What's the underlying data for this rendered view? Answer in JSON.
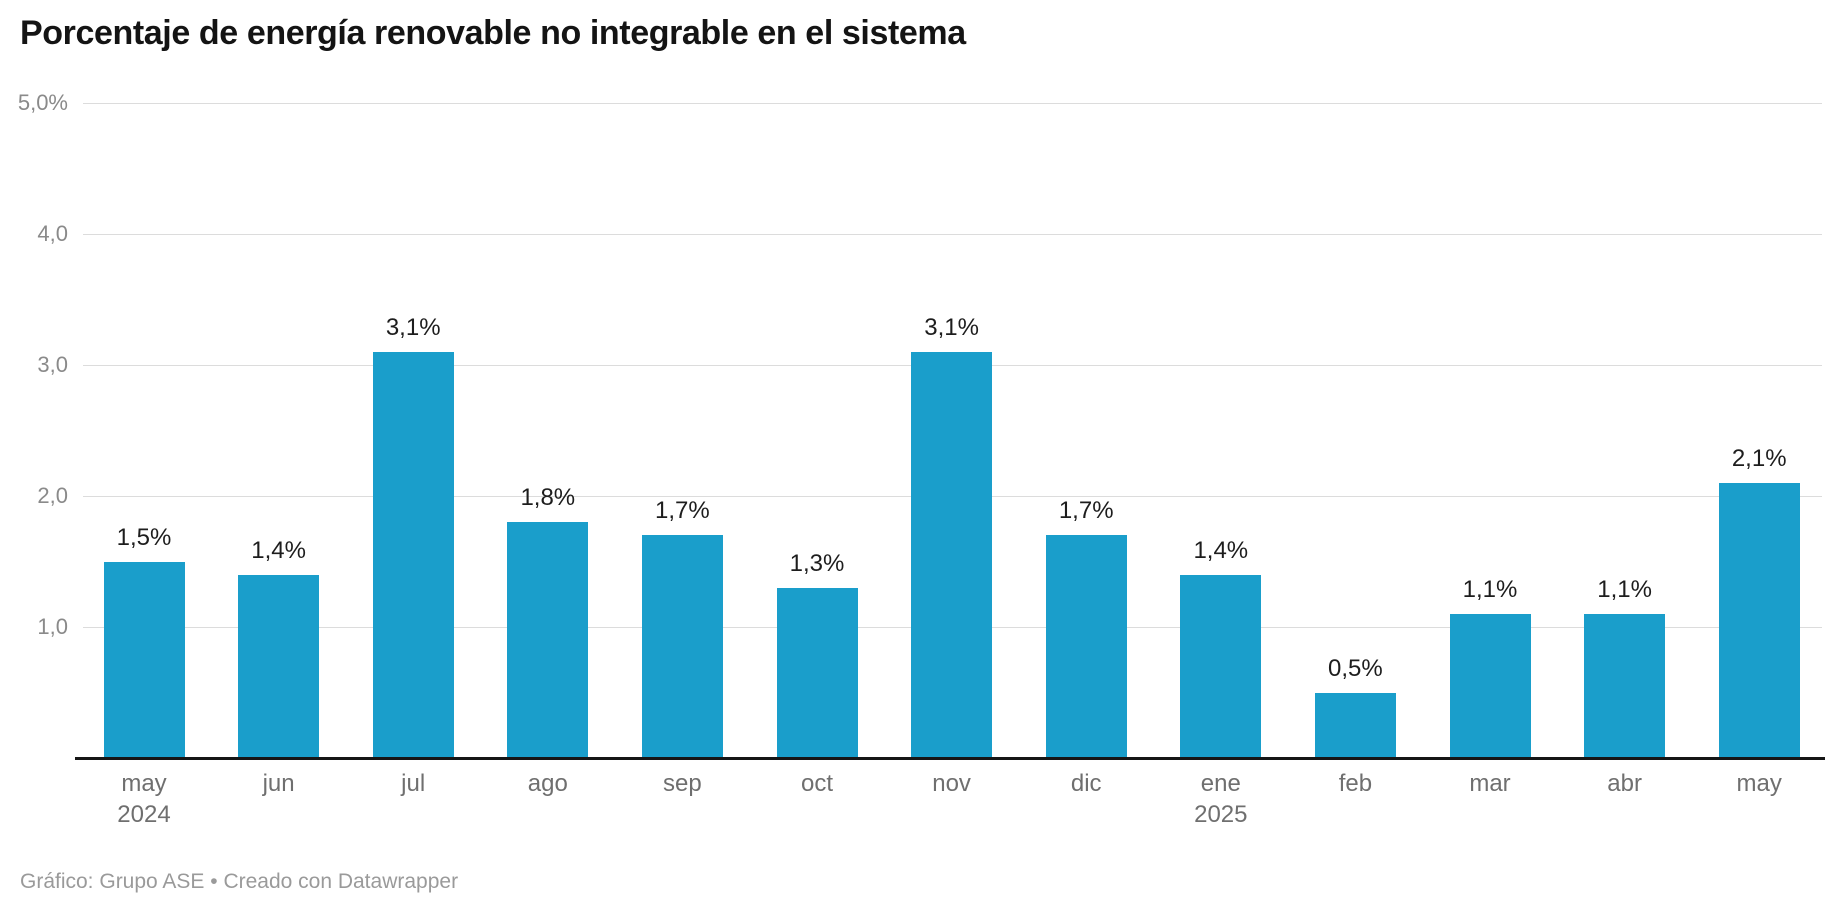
{
  "title": "Porcentaje de energía renovable no integrable en el sistema",
  "footer": "Gráfico: Grupo ASE • Creado con Datawrapper",
  "colors": {
    "bar": "#1a9ecb",
    "grid": "#dcdcdc",
    "baseline": "#161616",
    "tick_label": "#8a8a8a",
    "x_label": "#6f6f6f",
    "value_label": "#1d1d1d",
    "title": "#141414",
    "footer": "#9a9a9a",
    "background": "#ffffff"
  },
  "chart_data": {
    "type": "bar",
    "title": "Porcentaje de energía renovable no integrable en el sistema",
    "xlabel": "",
    "ylabel": "",
    "ylim": [
      0,
      5
    ],
    "grid": true,
    "legend_position": "none",
    "categories": [
      {
        "label": "may",
        "sublabel": "2024"
      },
      {
        "label": "jun",
        "sublabel": ""
      },
      {
        "label": "jul",
        "sublabel": ""
      },
      {
        "label": "ago",
        "sublabel": ""
      },
      {
        "label": "sep",
        "sublabel": ""
      },
      {
        "label": "oct",
        "sublabel": ""
      },
      {
        "label": "nov",
        "sublabel": ""
      },
      {
        "label": "dic",
        "sublabel": ""
      },
      {
        "label": "ene",
        "sublabel": "2025"
      },
      {
        "label": "feb",
        "sublabel": ""
      },
      {
        "label": "mar",
        "sublabel": ""
      },
      {
        "label": "abr",
        "sublabel": ""
      },
      {
        "label": "may",
        "sublabel": ""
      }
    ],
    "values": [
      1.5,
      1.4,
      3.1,
      1.8,
      1.7,
      1.3,
      3.1,
      1.7,
      1.4,
      0.5,
      1.1,
      1.1,
      2.1
    ],
    "value_labels": [
      "1,5%",
      "1,4%",
      "3,1%",
      "1,8%",
      "1,7%",
      "1,3%",
      "3,1%",
      "1,7%",
      "1,4%",
      "0,5%",
      "1,1%",
      "1,1%",
      "2,1%"
    ],
    "yticks": [
      {
        "value": 5,
        "label": "5,0%"
      },
      {
        "value": 4,
        "label": "4,0"
      },
      {
        "value": 3,
        "label": "3,0"
      },
      {
        "value": 2,
        "label": "2,0"
      },
      {
        "value": 1,
        "label": "1,0"
      }
    ]
  }
}
